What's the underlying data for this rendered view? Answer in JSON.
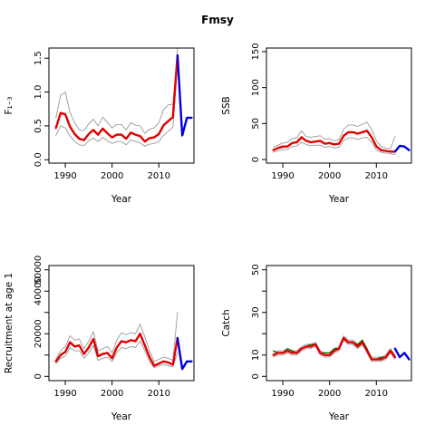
{
  "figure_title": "Fmsy",
  "chart_data": [
    {
      "type": "line",
      "panel": "top-left",
      "xlabel": "Year",
      "ylabel": "F₁₋₃",
      "xlim": [
        1986.5,
        2017.5
      ],
      "ylim": [
        -0.05,
        1.65
      ],
      "x_ticks": [
        1990,
        2000,
        2010
      ],
      "y_ticks": [
        0.0,
        0.5,
        1.0,
        1.5
      ],
      "y_tick_labels": [
        "0.0",
        "0.5",
        "1.0",
        "1.5"
      ],
      "series": [
        {
          "color": "#e00000",
          "style": "historical-median",
          "x": [
            1988,
            1989,
            1990,
            1991,
            1992,
            1993,
            1994,
            1995,
            1996,
            1997,
            1998,
            1999,
            2000,
            2001,
            2002,
            2003,
            2004,
            2005,
            2006,
            2007,
            2008,
            2009,
            2010,
            2011,
            2012,
            2013,
            2014
          ],
          "y": [
            0.47,
            0.69,
            0.67,
            0.49,
            0.38,
            0.31,
            0.29,
            0.38,
            0.44,
            0.37,
            0.46,
            0.39,
            0.33,
            0.37,
            0.37,
            0.31,
            0.4,
            0.37,
            0.35,
            0.27,
            0.32,
            0.33,
            0.38,
            0.51,
            0.57,
            0.63,
            1.54
          ]
        },
        {
          "color": "#999999",
          "style": "historical-upper",
          "x": [
            1988,
            1989,
            1990,
            1991,
            1992,
            1993,
            1994,
            1995,
            1996,
            1997,
            1998,
            1999,
            2000,
            2001,
            2002,
            2003,
            2004,
            2005,
            2006,
            2007,
            2008,
            2009,
            2010,
            2011,
            2012,
            2013,
            2014
          ],
          "y": [
            0.62,
            0.95,
            1.0,
            0.7,
            0.55,
            0.44,
            0.43,
            0.53,
            0.6,
            0.5,
            0.63,
            0.55,
            0.47,
            0.52,
            0.52,
            0.44,
            0.55,
            0.51,
            0.5,
            0.39,
            0.45,
            0.47,
            0.55,
            0.74,
            0.81,
            0.82,
            1.65
          ]
        },
        {
          "color": "#999999",
          "style": "historical-lower",
          "x": [
            1988,
            1989,
            1990,
            1991,
            1992,
            1993,
            1994,
            1995,
            1996,
            1997,
            1998,
            1999,
            2000,
            2001,
            2002,
            2003,
            2004,
            2005,
            2006,
            2007,
            2008,
            2009,
            2010,
            2011,
            2012,
            2013,
            2014
          ],
          "y": [
            0.36,
            0.5,
            0.47,
            0.35,
            0.27,
            0.22,
            0.21,
            0.28,
            0.32,
            0.27,
            0.33,
            0.28,
            0.24,
            0.27,
            0.27,
            0.22,
            0.29,
            0.27,
            0.25,
            0.2,
            0.23,
            0.24,
            0.27,
            0.36,
            0.42,
            0.48,
            1.45
          ]
        },
        {
          "color": "#0000e0",
          "style": "forecast",
          "x": [
            2014,
            2015,
            2016,
            2017
          ],
          "y": [
            1.54,
            0.36,
            0.62,
            0.62
          ]
        }
      ]
    },
    {
      "type": "line",
      "panel": "top-right",
      "xlabel": "Year",
      "ylabel": "SSB",
      "xlim": [
        1986.5,
        2017.5
      ],
      "ylim": [
        -5,
        155
      ],
      "x_ticks": [
        1990,
        2000,
        2010
      ],
      "y_ticks": [
        0,
        50,
        100,
        150
      ],
      "y_tick_labels": [
        "0",
        "50",
        "100",
        "150"
      ],
      "series": [
        {
          "color": "#e00000",
          "style": "historical-median",
          "x": [
            1988,
            1989,
            1990,
            1991,
            1992,
            1993,
            1994,
            1995,
            1996,
            1997,
            1998,
            1999,
            2000,
            2001,
            2002,
            2003,
            2004,
            2005,
            2006,
            2007,
            2008,
            2009,
            2010,
            2011,
            2012,
            2013,
            2014
          ],
          "y": [
            13,
            16,
            18,
            18,
            23,
            24,
            31,
            26,
            24,
            25,
            26,
            22,
            23,
            21,
            22,
            33,
            38,
            38,
            36,
            38,
            40,
            31,
            18,
            13,
            12,
            11,
            11
          ]
        },
        {
          "color": "#999999",
          "style": "historical-upper",
          "x": [
            1988,
            1989,
            1990,
            1991,
            1992,
            1993,
            1994,
            1995,
            1996,
            1997,
            1998,
            1999,
            2000,
            2001,
            2002,
            2003,
            2004,
            2005,
            2006,
            2007,
            2008,
            2009,
            2010,
            2011,
            2012,
            2013,
            2014
          ],
          "y": [
            17,
            20,
            23,
            24,
            29,
            30,
            40,
            32,
            31,
            32,
            33,
            28,
            29,
            26,
            28,
            42,
            48,
            48,
            46,
            49,
            52,
            42,
            26,
            18,
            16,
            15,
            32
          ]
        },
        {
          "color": "#999999",
          "style": "historical-lower",
          "x": [
            1988,
            1989,
            1990,
            1991,
            1992,
            1993,
            1994,
            1995,
            1996,
            1997,
            1998,
            1999,
            2000,
            2001,
            2002,
            2003,
            2004,
            2005,
            2006,
            2007,
            2008,
            2009,
            2010,
            2011,
            2012,
            2013,
            2014
          ],
          "y": [
            10,
            12,
            14,
            14,
            18,
            19,
            24,
            21,
            19,
            20,
            20,
            17,
            18,
            16,
            17,
            26,
            30,
            30,
            28,
            30,
            31,
            24,
            13,
            10,
            9,
            8,
            7
          ]
        },
        {
          "color": "#0000e0",
          "style": "forecast",
          "x": [
            2014,
            2015,
            2016,
            2017
          ],
          "y": [
            11,
            19,
            18,
            13
          ]
        }
      ]
    },
    {
      "type": "line",
      "panel": "bottom-left",
      "xlabel": "Year",
      "ylabel": "Recruitment at age 1",
      "xlim": [
        1986.5,
        2017.5
      ],
      "ylim": [
        -2000,
        52000
      ],
      "x_ticks": [
        1990,
        2000,
        2010
      ],
      "y_ticks": [
        0,
        10000,
        20000,
        30000,
        40000,
        50000
      ],
      "y_tick_labels": [
        "0",
        "",
        "20000",
        "",
        "40000",
        "50000"
      ],
      "series": [
        {
          "color": "#e00000",
          "style": "historical-median",
          "x": [
            1988,
            1989,
            1990,
            1991,
            1992,
            1993,
            1994,
            1995,
            1996,
            1997,
            1998,
            1999,
            2000,
            2001,
            2002,
            2003,
            2004,
            2005,
            2006,
            2007,
            2008,
            2009,
            2010,
            2011,
            2012,
            2013,
            2014
          ],
          "y": [
            7000,
            10000,
            11500,
            16000,
            14000,
            14500,
            10500,
            13500,
            17500,
            9500,
            10500,
            11000,
            8500,
            13500,
            16500,
            16000,
            17000,
            16500,
            20000,
            14500,
            9000,
            5000,
            6000,
            7000,
            6500,
            5500,
            18000
          ]
        },
        {
          "color": "#999999",
          "style": "historical-upper",
          "x": [
            1988,
            1989,
            1990,
            1991,
            1992,
            1993,
            1994,
            1995,
            1996,
            1997,
            1998,
            1999,
            2000,
            2001,
            2002,
            2003,
            2004,
            2005,
            2006,
            2007,
            2008,
            2009,
            2010,
            2011,
            2012,
            2013,
            2014
          ],
          "y": [
            8000,
            12000,
            14000,
            19000,
            17000,
            17500,
            13000,
            16500,
            21000,
            12000,
            13000,
            14000,
            11000,
            17000,
            20500,
            19500,
            20500,
            20000,
            24500,
            18500,
            12000,
            7000,
            8000,
            9000,
            8500,
            7500,
            30000
          ]
        },
        {
          "color": "#999999",
          "style": "historical-lower",
          "x": [
            1988,
            1989,
            1990,
            1991,
            1992,
            1993,
            1994,
            1995,
            1996,
            1997,
            1998,
            1999,
            2000,
            2001,
            2002,
            2003,
            2004,
            2005,
            2006,
            2007,
            2008,
            2009,
            2010,
            2011,
            2012,
            2013,
            2014
          ],
          "y": [
            6000,
            8500,
            9500,
            13500,
            12000,
            12000,
            8500,
            11000,
            14500,
            7500,
            8500,
            9000,
            7000,
            11000,
            13500,
            13000,
            14000,
            13500,
            16500,
            12000,
            7000,
            4000,
            5000,
            5500,
            5000,
            4500,
            11000
          ]
        },
        {
          "color": "#0000e0",
          "style": "forecast",
          "x": [
            2014,
            2015,
            2016,
            2017
          ],
          "y": [
            18000,
            3500,
            7000,
            7000
          ]
        }
      ]
    },
    {
      "type": "line",
      "panel": "bottom-right",
      "xlabel": "Year",
      "ylabel": "Catch",
      "xlim": [
        1986.5,
        2017.5
      ],
      "ylim": [
        -2,
        52
      ],
      "x_ticks": [
        1990,
        2000,
        2010
      ],
      "y_ticks": [
        0,
        10,
        20,
        30,
        40,
        50
      ],
      "y_tick_labels": [
        "0",
        "10",
        "",
        "30",
        "",
        "50"
      ],
      "series": [
        {
          "color": "#007000",
          "style": "observed",
          "x": [
            1988,
            1989,
            1990,
            1991,
            1992,
            1993,
            1994,
            1995,
            1996,
            1997,
            1998,
            1999,
            2000,
            2001,
            2002,
            2003,
            2004,
            2005,
            2006,
            2007,
            2008,
            2009,
            2010,
            2011,
            2012,
            2013
          ],
          "y": [
            12,
            11,
            11,
            13,
            12,
            11,
            13,
            14,
            15,
            15,
            11,
            11,
            11,
            13,
            13,
            18,
            16,
            16,
            15,
            17,
            13,
            8,
            8,
            9,
            9,
            12
          ]
        },
        {
          "color": "#e00000",
          "style": "historical-median",
          "x": [
            1988,
            1989,
            1990,
            1991,
            1992,
            1993,
            1994,
            1995,
            1996,
            1997,
            1998,
            1999,
            2000,
            2001,
            2002,
            2003,
            2004,
            2005,
            2006,
            2007,
            2008,
            2009,
            2010,
            2011,
            2012,
            2013,
            2014
          ],
          "y": [
            10,
            11,
            11,
            12,
            11,
            11,
            13,
            14,
            14,
            15,
            11,
            10,
            10,
            12,
            13,
            18,
            16,
            16,
            14,
            16,
            12,
            8,
            8,
            8,
            9,
            12,
            9
          ]
        },
        {
          "color": "#999999",
          "style": "historical-upper",
          "x": [
            1988,
            1989,
            1990,
            1991,
            1992,
            1993,
            1994,
            1995,
            1996,
            1997,
            1998,
            1999,
            2000,
            2001,
            2002,
            2003,
            2004,
            2005,
            2006,
            2007,
            2008,
            2009,
            2010,
            2011,
            2012,
            2013,
            2014
          ],
          "y": [
            11,
            12,
            12,
            13,
            12,
            12,
            14,
            15,
            15,
            16,
            12,
            11,
            11,
            13,
            14,
            19,
            17,
            17,
            15,
            17,
            13,
            9,
            9,
            9,
            10,
            13,
            10
          ]
        },
        {
          "color": "#999999",
          "style": "historical-lower",
          "x": [
            1988,
            1989,
            1990,
            1991,
            1992,
            1993,
            1994,
            1995,
            1996,
            1997,
            1998,
            1999,
            2000,
            2001,
            2002,
            2003,
            2004,
            2005,
            2006,
            2007,
            2008,
            2009,
            2010,
            2011,
            2012,
            2013,
            2014
          ],
          "y": [
            9,
            10,
            10,
            11,
            10,
            10,
            12,
            13,
            13,
            14,
            10,
            9,
            9,
            11,
            12,
            17,
            15,
            15,
            13,
            15,
            11,
            7,
            7,
            7,
            8,
            11,
            8
          ]
        },
        {
          "color": "#0000e0",
          "style": "forecast",
          "x": [
            2014,
            2015,
            2016,
            2017
          ],
          "y": [
            13,
            9,
            11,
            8
          ]
        }
      ]
    }
  ]
}
